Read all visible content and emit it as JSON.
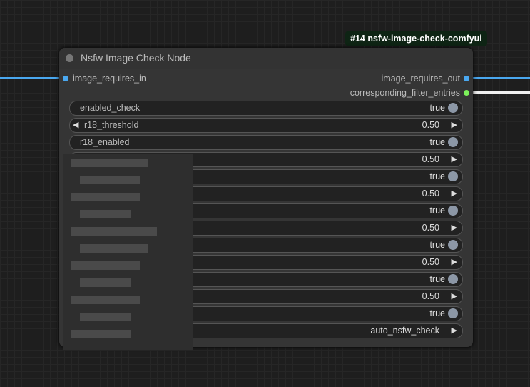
{
  "badge": "#14 nsfw-image-check-comfyui",
  "node": {
    "title": "Nsfw Image Check Node",
    "inputs": [
      {
        "label": "image_requires_in",
        "color": "#4aa8f0"
      }
    ],
    "outputs": [
      {
        "label": "image_requires_out",
        "color": "#4aa8f0"
      },
      {
        "label": "corresponding_filter_entries",
        "color": "#7cf05a"
      }
    ],
    "widgets": [
      {
        "type": "toggle",
        "label": "enabled_check",
        "value": "true"
      },
      {
        "type": "number",
        "label": "r18_threshold",
        "value": "0.50"
      },
      {
        "type": "toggle",
        "label": "r18_enabled",
        "value": "true"
      },
      {
        "type": "number",
        "label": "",
        "value": "0.50"
      },
      {
        "type": "toggle",
        "label": "",
        "value": "true"
      },
      {
        "type": "number",
        "label": "",
        "value": "0.50"
      },
      {
        "type": "toggle",
        "label": "",
        "value": "true"
      },
      {
        "type": "number",
        "label": "",
        "value": "0.50"
      },
      {
        "type": "toggle",
        "label": "",
        "value": "true"
      },
      {
        "type": "number",
        "label": "",
        "value": "0.50"
      },
      {
        "type": "toggle",
        "label": "",
        "value": "true"
      },
      {
        "type": "number",
        "label": "",
        "value": "0.50"
      },
      {
        "type": "toggle",
        "label": "",
        "value": "true"
      },
      {
        "type": "combo",
        "label": "",
        "value": "auto_nsfw_check"
      }
    ]
  }
}
